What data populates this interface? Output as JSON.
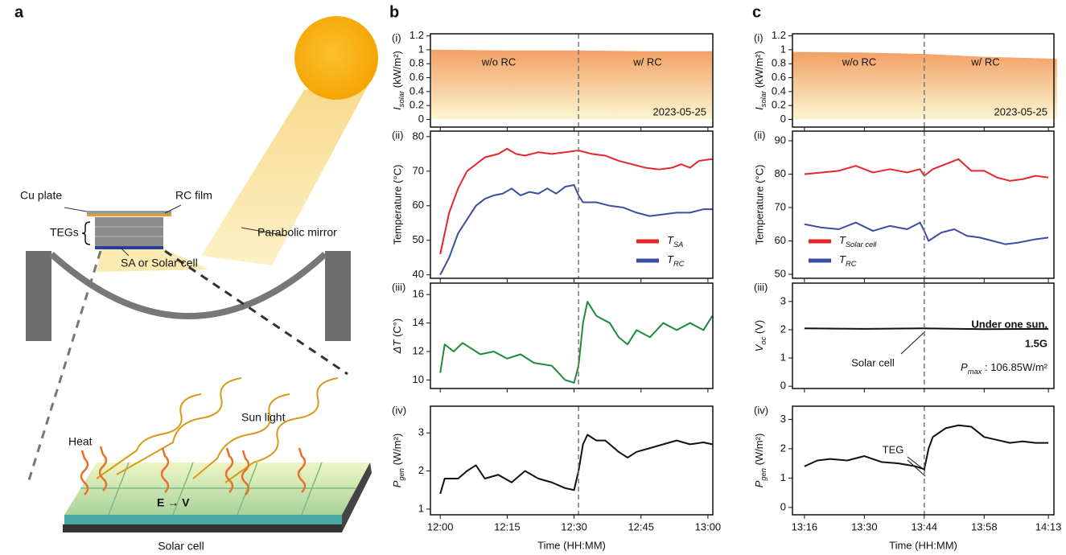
{
  "panel_labels": [
    "a",
    "b",
    "c"
  ],
  "diagram": {
    "labels": [
      "Cu plate",
      "RC film",
      "TEGs",
      "Parabolic mirror",
      "SA or Solar cell",
      "Sun light",
      "Heat",
      "E → V",
      "Solar cell"
    ]
  },
  "chart_data": [
    {
      "type": "area",
      "panel_label": "(i)",
      "ylabel": "Isolar (kW/m²)",
      "ylim": [
        -0.11,
        1.23
      ],
      "yticks": [
        0,
        0.2,
        0.4,
        0.6,
        0.8,
        1,
        1.2
      ],
      "xlim": [
        -2.2,
        61.1
      ],
      "xticks": [
        0,
        15,
        30,
        45,
        60
      ],
      "divider_x": 31,
      "x": [
        -2,
        0,
        15,
        30,
        45,
        61
      ],
      "values": [
        1.0,
        1.0,
        0.99,
        0.99,
        0.98,
        0.98
      ],
      "gradient": [
        "#f2a064",
        "#fcf6d2"
      ],
      "annotations": [
        "w/o RC",
        "w/ RC",
        "2023-05-25"
      ]
    },
    {
      "type": "line",
      "panel_label": "(ii)",
      "ylabel": "Temperature (°C)",
      "ylim": [
        39,
        81.6
      ],
      "yticks": [
        40,
        50,
        60,
        70,
        80
      ],
      "xlim": [
        -2.2,
        61.1
      ],
      "xticks": [
        0,
        15,
        30,
        45,
        60
      ],
      "divider_x": 31,
      "legend": "lower right",
      "series": [
        {
          "name": "TSA",
          "color": "#e8262a",
          "x": [
            0,
            2,
            4,
            6,
            8,
            10,
            13,
            15,
            17,
            19,
            22,
            25,
            28,
            31,
            34,
            37,
            40,
            43,
            46,
            49,
            52,
            54,
            56,
            58,
            61
          ],
          "values": [
            46,
            58,
            65,
            70,
            72,
            74,
            75,
            76.5,
            75,
            74.5,
            75.5,
            75,
            75.5,
            76,
            75,
            74.5,
            73,
            72,
            71,
            70.5,
            71,
            72,
            71,
            73,
            73.5
          ]
        },
        {
          "name": "TRC",
          "color": "#3a4ea3",
          "x": [
            0,
            2,
            4,
            6,
            8,
            10,
            12,
            14,
            16,
            18,
            20,
            22,
            24,
            26,
            28,
            30,
            31,
            32,
            35,
            38,
            41,
            44,
            47,
            50,
            53,
            56,
            59,
            61
          ],
          "values": [
            40,
            45,
            52,
            56,
            60,
            62,
            63,
            63.5,
            65,
            63,
            64,
            63.5,
            65,
            63.5,
            65.5,
            66,
            63,
            61,
            61,
            60,
            59.5,
            58,
            57,
            57.5,
            58,
            58,
            59,
            59
          ]
        }
      ]
    },
    {
      "type": "line",
      "panel_label": "(iii)",
      "ylabel": "ΔT (C°)",
      "ylim": [
        9.4,
        16.8
      ],
      "yticks": [
        10,
        12,
        14,
        16
      ],
      "xlim": [
        -2.2,
        61.1
      ],
      "xticks": [
        0,
        15,
        30,
        45,
        60
      ],
      "divider_x": 31,
      "series": [
        {
          "color": "#1e8a3c",
          "x": [
            0,
            1,
            3,
            5,
            7,
            9,
            12,
            15,
            18,
            21,
            25,
            28,
            30,
            31,
            32,
            33,
            35,
            38,
            40,
            42,
            44,
            47,
            50,
            53,
            56,
            59,
            61
          ],
          "values": [
            10.5,
            12.5,
            12,
            12.6,
            12.2,
            11.8,
            12,
            11.5,
            11.8,
            11.2,
            11,
            10,
            9.8,
            11,
            14,
            15.5,
            14.5,
            14,
            13,
            12.5,
            13.5,
            13,
            14,
            13.5,
            14,
            13.5,
            14.5
          ]
        }
      ]
    },
    {
      "type": "line",
      "panel_label": "(iv)",
      "ylabel": "Pgen (W/m²)",
      "xlabel": "Time (HH:MM)",
      "ylim": [
        0.85,
        3.7
      ],
      "yticks": [
        1,
        2,
        3
      ],
      "xlim": [
        -2.2,
        61.1
      ],
      "xticks": [
        {
          "value": 0,
          "label": "12:00"
        },
        {
          "value": 15,
          "label": "12:15"
        },
        {
          "value": 30,
          "label": "12:30"
        },
        {
          "value": 45,
          "label": "12:45"
        },
        {
          "value": 60,
          "label": "13:00"
        }
      ],
      "divider_x": 31,
      "series": [
        {
          "color": "#111111",
          "x": [
            0,
            1,
            4,
            6,
            8,
            10,
            13,
            16,
            19,
            22,
            25,
            28,
            30,
            31,
            32,
            33,
            35,
            37,
            40,
            42,
            44,
            47,
            50,
            53,
            56,
            59,
            61
          ],
          "values": [
            1.4,
            1.8,
            1.8,
            2.0,
            2.15,
            1.8,
            1.9,
            1.7,
            2.0,
            1.8,
            1.7,
            1.55,
            1.5,
            2.0,
            2.7,
            2.95,
            2.8,
            2.8,
            2.5,
            2.35,
            2.5,
            2.6,
            2.7,
            2.8,
            2.7,
            2.75,
            2.7
          ]
        }
      ]
    },
    {
      "type": "area",
      "panel_label": "(i)",
      "ylabel": "Isolar (kW/m²)",
      "ylim": [
        -0.11,
        1.23
      ],
      "yticks": [
        0,
        0.2,
        0.4,
        0.6,
        0.8,
        1,
        1.2
      ],
      "xlim": [
        -2.8,
        58.3
      ],
      "xticks": [
        0,
        14,
        28,
        42,
        57
      ],
      "divider_x": 28,
      "x": [
        -3,
        14,
        28,
        42,
        59
      ],
      "values": [
        0.97,
        0.96,
        0.94,
        0.9,
        0.87
      ],
      "gradient": [
        "#f2a064",
        "#fcf6d2"
      ],
      "annotations": [
        "w/o RC",
        "w/ RC",
        "2023-05-25"
      ]
    },
    {
      "type": "line",
      "panel_label": "(ii)",
      "ylabel": "Temperature (°C)",
      "ylim": [
        48.8,
        92.9
      ],
      "yticks": [
        50,
        60,
        70,
        80,
        90
      ],
      "xlim": [
        -2.8,
        58.3
      ],
      "xticks": [
        0,
        14,
        28,
        42,
        57
      ],
      "divider_x": 28,
      "legend": "lower left",
      "series": [
        {
          "name": "TSolar cell",
          "color": "#e8262a",
          "x": [
            0,
            4,
            8,
            12,
            16,
            20,
            24,
            27,
            28,
            30,
            33,
            36,
            39,
            42,
            45,
            48,
            51,
            54,
            57
          ],
          "values": [
            80,
            80.5,
            81,
            82.5,
            80.5,
            81.5,
            80.5,
            81.5,
            79.5,
            81.5,
            83,
            84.5,
            81,
            81,
            79,
            78,
            78.5,
            79.5,
            79
          ]
        },
        {
          "name": "TRC",
          "color": "#3a4ea3",
          "x": [
            0,
            4,
            8,
            12,
            16,
            20,
            24,
            27,
            28,
            29,
            32,
            35,
            38,
            41,
            44,
            47,
            50,
            54,
            57
          ],
          "values": [
            65,
            64,
            63.5,
            65.5,
            63,
            64.5,
            63.5,
            65.5,
            63,
            60,
            62.5,
            63.5,
            61.5,
            61,
            60,
            59,
            59.5,
            60.5,
            61
          ]
        }
      ]
    },
    {
      "type": "line",
      "panel_label": "(iii)",
      "ylabel": "Voc (V)",
      "ylim": [
        -0.08,
        3.65
      ],
      "yticks": [
        0,
        1,
        2,
        3
      ],
      "xlim": [
        -2.8,
        58.3
      ],
      "xticks": [
        0,
        14,
        28,
        42,
        57
      ],
      "divider_x": 28,
      "series": [
        {
          "color": "#111111",
          "x": [
            0,
            14,
            28,
            42,
            57
          ],
          "values": [
            2.05,
            2.03,
            2.05,
            2.02,
            2.03
          ]
        }
      ],
      "annotations": [
        "Solar cell",
        "Under one sun,",
        "1.5G",
        "Pmax : 106.85W/m²"
      ]
    },
    {
      "type": "line",
      "panel_label": "(iv)",
      "ylabel": "Pgen (W/m²)",
      "xlabel": "Time (HH:MM)",
      "ylim": [
        -0.25,
        3.45
      ],
      "yticks": [
        0,
        1,
        2,
        3
      ],
      "xlim": [
        -2.8,
        58.3
      ],
      "xticks": [
        {
          "value": 0,
          "label": "13:16"
        },
        {
          "value": 14,
          "label": "13:30"
        },
        {
          "value": 28,
          "label": "13:44"
        },
        {
          "value": 42,
          "label": "13:58"
        },
        {
          "value": 57,
          "label": "14:13"
        }
      ],
      "divider_x": 28,
      "series": [
        {
          "color": "#111111",
          "x": [
            0,
            3,
            6,
            10,
            14,
            18,
            22,
            26,
            28,
            29,
            30,
            33,
            36,
            39,
            42,
            45,
            48,
            51,
            54,
            57
          ],
          "values": [
            1.4,
            1.6,
            1.65,
            1.6,
            1.75,
            1.55,
            1.5,
            1.4,
            1.3,
            2.0,
            2.4,
            2.7,
            2.8,
            2.75,
            2.4,
            2.3,
            2.2,
            2.25,
            2.2,
            2.2
          ]
        }
      ],
      "annotations": [
        "TEG"
      ]
    }
  ]
}
